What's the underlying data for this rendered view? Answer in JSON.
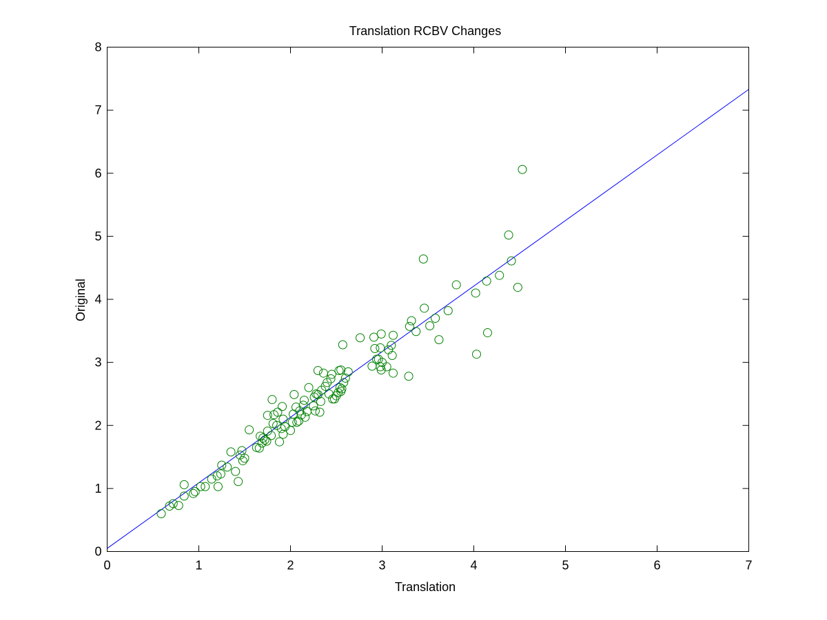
{
  "chart_data": {
    "type": "scatter",
    "title": "Translation RCBV Changes",
    "xlabel": "Translation",
    "ylabel": "Original",
    "xlim": [
      0,
      7
    ],
    "ylim": [
      0,
      8
    ],
    "xticks": [
      "0",
      "1",
      "2",
      "3",
      "4",
      "5",
      "6",
      "7"
    ],
    "yticks": [
      "0",
      "1",
      "2",
      "3",
      "4",
      "5",
      "6",
      "7",
      "8"
    ],
    "grid": false,
    "legend": "none",
    "marker": "open-circle",
    "marker_color": "#008000",
    "line_color": "#0000ff",
    "fit_line": {
      "x": [
        0,
        7
      ],
      "y": [
        0.05,
        7.33
      ]
    },
    "points": [
      [
        0.59,
        0.6
      ],
      [
        0.68,
        0.72
      ],
      [
        0.72,
        0.76
      ],
      [
        0.78,
        0.73
      ],
      [
        0.84,
        0.88
      ],
      [
        0.84,
        1.06
      ],
      [
        0.94,
        0.92
      ],
      [
        0.96,
        0.95
      ],
      [
        1.02,
        1.03
      ],
      [
        1.07,
        1.03
      ],
      [
        1.14,
        1.15
      ],
      [
        1.2,
        1.2
      ],
      [
        1.21,
        1.03
      ],
      [
        1.24,
        1.23
      ],
      [
        1.25,
        1.37
      ],
      [
        1.31,
        1.34
      ],
      [
        1.35,
        1.58
      ],
      [
        1.4,
        1.27
      ],
      [
        1.43,
        1.11
      ],
      [
        1.45,
        1.53
      ],
      [
        1.47,
        1.6
      ],
      [
        1.48,
        1.44
      ],
      [
        1.5,
        1.48
      ],
      [
        1.55,
        1.93
      ],
      [
        1.63,
        1.65
      ],
      [
        1.66,
        1.64
      ],
      [
        1.67,
        1.83
      ],
      [
        1.69,
        1.72
      ],
      [
        1.7,
        1.8
      ],
      [
        1.72,
        1.77
      ],
      [
        1.74,
        1.75
      ],
      [
        1.75,
        1.91
      ],
      [
        1.75,
        2.16
      ],
      [
        1.79,
        1.84
      ],
      [
        1.8,
        2.41
      ],
      [
        1.81,
        2.03
      ],
      [
        1.82,
        2.17
      ],
      [
        1.85,
        2.0
      ],
      [
        1.86,
        2.21
      ],
      [
        1.88,
        1.74
      ],
      [
        1.9,
        1.95
      ],
      [
        1.91,
        2.3
      ],
      [
        1.92,
        1.86
      ],
      [
        1.92,
        2.1
      ],
      [
        1.94,
        1.98
      ],
      [
        2.0,
        1.92
      ],
      [
        2.02,
        2.05
      ],
      [
        2.03,
        2.18
      ],
      [
        2.04,
        2.49
      ],
      [
        2.06,
        2.29
      ],
      [
        2.07,
        2.05
      ],
      [
        2.09,
        2.07
      ],
      [
        2.1,
        2.23
      ],
      [
        2.12,
        2.17
      ],
      [
        2.14,
        2.32
      ],
      [
        2.15,
        2.4
      ],
      [
        2.16,
        2.13
      ],
      [
        2.18,
        2.22
      ],
      [
        2.2,
        2.6
      ],
      [
        2.25,
        2.31
      ],
      [
        2.26,
        2.45
      ],
      [
        2.27,
        2.23
      ],
      [
        2.28,
        2.5
      ],
      [
        2.3,
        2.87
      ],
      [
        2.3,
        2.49
      ],
      [
        2.32,
        2.21
      ],
      [
        2.33,
        2.38
      ],
      [
        2.34,
        2.56
      ],
      [
        2.36,
        2.83
      ],
      [
        2.38,
        2.62
      ],
      [
        2.4,
        2.68
      ],
      [
        2.42,
        2.5
      ],
      [
        2.44,
        2.74
      ],
      [
        2.45,
        2.81
      ],
      [
        2.46,
        2.42
      ],
      [
        2.48,
        2.42
      ],
      [
        2.5,
        2.47
      ],
      [
        2.52,
        2.52
      ],
      [
        2.53,
        2.87
      ],
      [
        2.54,
        2.6
      ],
      [
        2.55,
        2.88
      ],
      [
        2.55,
        2.54
      ],
      [
        2.56,
        2.58
      ],
      [
        2.57,
        3.28
      ],
      [
        2.58,
        2.68
      ],
      [
        2.6,
        2.75
      ],
      [
        2.63,
        2.85
      ],
      [
        2.76,
        3.39
      ],
      [
        2.89,
        2.94
      ],
      [
        2.91,
        3.4
      ],
      [
        2.92,
        3.22
      ],
      [
        2.94,
        3.05
      ],
      [
        2.96,
        3.05
      ],
      [
        2.98,
        3.23
      ],
      [
        2.98,
        2.93
      ],
      [
        2.99,
        2.88
      ],
      [
        2.99,
        3.45
      ],
      [
        3.0,
        3.0
      ],
      [
        3.05,
        2.93
      ],
      [
        3.07,
        3.2
      ],
      [
        3.1,
        3.27
      ],
      [
        3.11,
        3.11
      ],
      [
        3.12,
        3.43
      ],
      [
        3.12,
        2.83
      ],
      [
        3.29,
        2.78
      ],
      [
        3.3,
        3.57
      ],
      [
        3.32,
        3.66
      ],
      [
        3.37,
        3.49
      ],
      [
        3.45,
        4.64
      ],
      [
        3.46,
        3.86
      ],
      [
        3.52,
        3.58
      ],
      [
        3.58,
        3.7
      ],
      [
        3.62,
        3.36
      ],
      [
        3.72,
        3.82
      ],
      [
        3.81,
        4.23
      ],
      [
        4.02,
        4.1
      ],
      [
        4.03,
        3.13
      ],
      [
        4.14,
        4.29
      ],
      [
        4.15,
        3.47
      ],
      [
        4.28,
        4.38
      ],
      [
        4.38,
        5.02
      ],
      [
        4.41,
        4.61
      ],
      [
        4.48,
        4.19
      ],
      [
        4.53,
        6.06
      ]
    ]
  }
}
